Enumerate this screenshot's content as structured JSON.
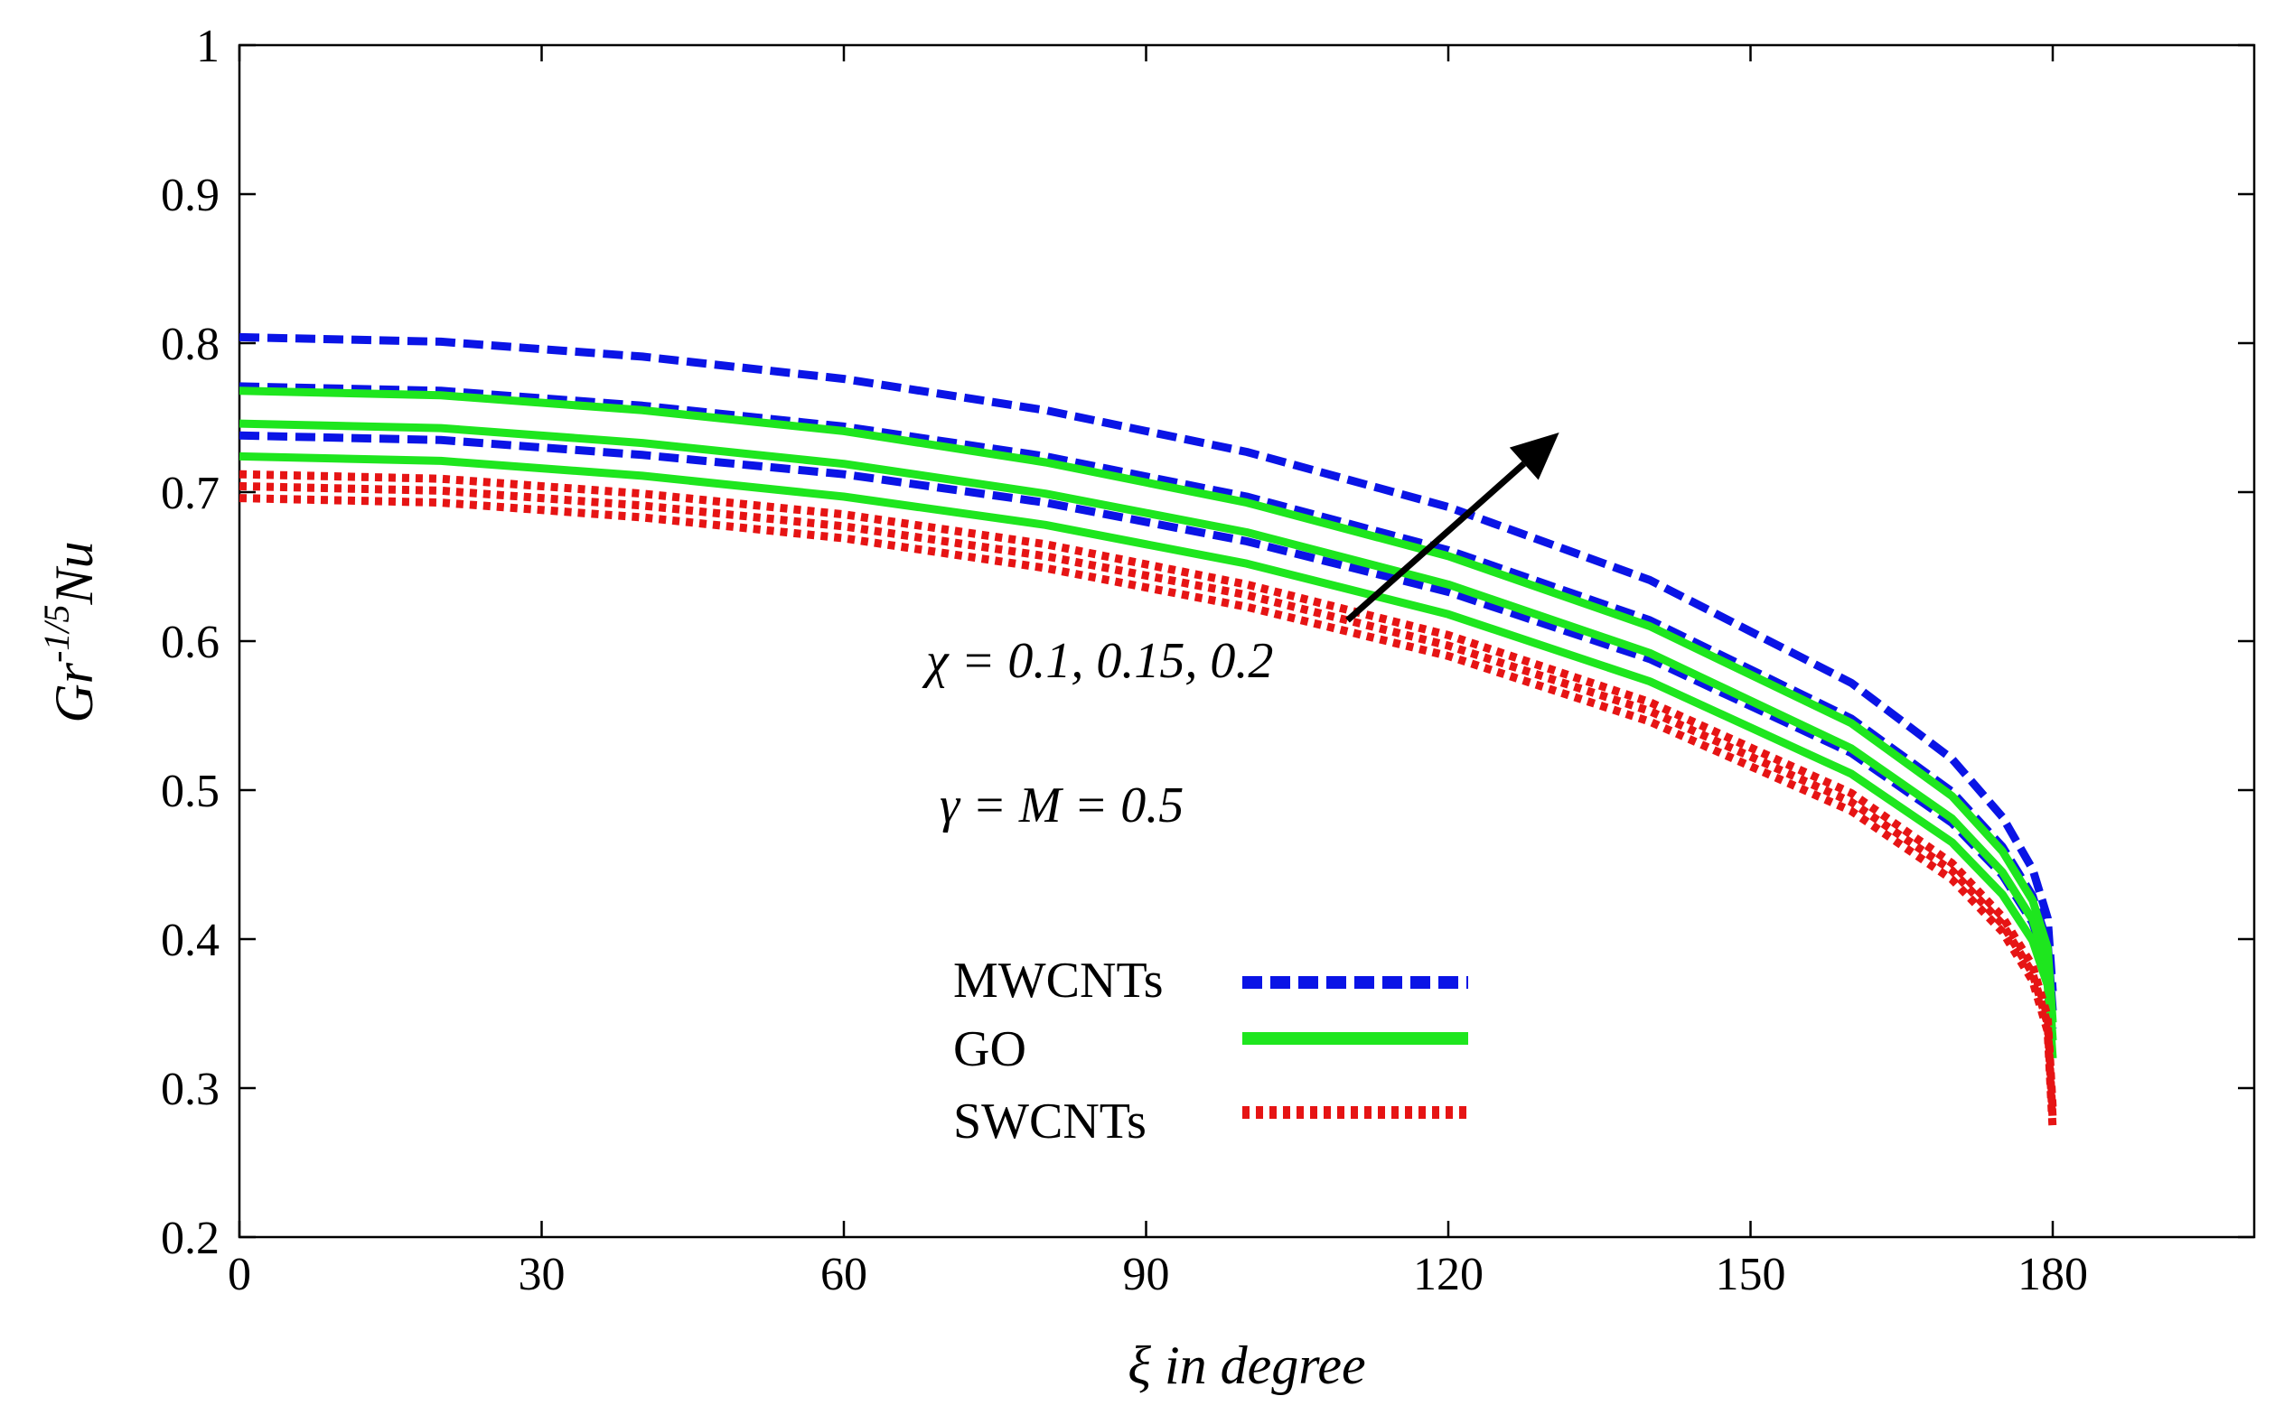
{
  "chart_data": {
    "type": "line",
    "title": "",
    "xlabel": "ξ in degree",
    "ylabel_main": "Gr",
    "ylabel_sup": "-1/5",
    "ylabel_sub": "Nu",
    "xlim": [
      0,
      200
    ],
    "ylim": [
      0.2,
      1.0
    ],
    "xticks": [
      0,
      30,
      60,
      90,
      120,
      150,
      180
    ],
    "xtick_labels": [
      "0",
      "30",
      "60",
      "90",
      "120",
      "150",
      "180"
    ],
    "yticks": [
      0.2,
      0.3,
      0.4,
      0.5,
      0.6,
      0.7,
      0.8,
      0.9,
      1.0
    ],
    "ytick_labels": [
      "0.2",
      "0.3",
      "0.4",
      "0.5",
      "0.6",
      "0.7",
      "0.8",
      "0.9",
      "1"
    ],
    "grid": false,
    "legend_position": "bottom-center",
    "x": [
      0,
      20,
      40,
      60,
      80,
      100,
      120,
      140,
      160,
      170,
      175,
      178,
      179.5,
      180
    ],
    "series": [
      {
        "name": "MWCNTs",
        "group": "MWCNTs",
        "chi": 0.1,
        "color": "#0a14e6",
        "dash": "dashed",
        "values": [
          0.738,
          0.735,
          0.725,
          0.712,
          0.693,
          0.667,
          0.633,
          0.588,
          0.525,
          0.478,
          0.443,
          0.411,
          0.381,
          0.34
        ]
      },
      {
        "name": "MWCNTs",
        "group": "MWCNTs",
        "chi": 0.15,
        "color": "#0a14e6",
        "dash": "dashed",
        "values": [
          0.771,
          0.768,
          0.758,
          0.744,
          0.724,
          0.697,
          0.661,
          0.614,
          0.548,
          0.499,
          0.462,
          0.429,
          0.397,
          0.352
        ]
      },
      {
        "name": "MWCNTs",
        "group": "MWCNTs",
        "chi": 0.2,
        "color": "#0a14e6",
        "dash": "dashed",
        "values": [
          0.804,
          0.801,
          0.791,
          0.776,
          0.755,
          0.727,
          0.69,
          0.641,
          0.572,
          0.521,
          0.482,
          0.447,
          0.414,
          0.365
        ]
      },
      {
        "name": "GO",
        "group": "GO",
        "chi": 0.1,
        "color": "#1ee61e",
        "dash": "solid",
        "values": [
          0.724,
          0.721,
          0.711,
          0.697,
          0.678,
          0.652,
          0.618,
          0.573,
          0.511,
          0.465,
          0.43,
          0.399,
          0.369,
          0.32
        ]
      },
      {
        "name": "GO",
        "group": "GO",
        "chi": 0.15,
        "color": "#1ee61e",
        "dash": "solid",
        "values": [
          0.746,
          0.743,
          0.733,
          0.719,
          0.699,
          0.673,
          0.638,
          0.592,
          0.528,
          0.481,
          0.445,
          0.413,
          0.382,
          0.332
        ]
      },
      {
        "name": "GO",
        "group": "GO",
        "chi": 0.2,
        "color": "#1ee61e",
        "dash": "solid",
        "values": [
          0.768,
          0.765,
          0.755,
          0.741,
          0.72,
          0.693,
          0.657,
          0.61,
          0.545,
          0.496,
          0.459,
          0.426,
          0.394,
          0.344
        ]
      },
      {
        "name": "SWCNTs",
        "group": "SWCNTs",
        "chi": 0.1,
        "color": "#e61414",
        "dash": "dotted",
        "values": [
          0.696,
          0.693,
          0.683,
          0.669,
          0.649,
          0.623,
          0.59,
          0.546,
          0.486,
          0.44,
          0.405,
          0.372,
          0.338,
          0.272
        ]
      },
      {
        "name": "SWCNTs",
        "group": "SWCNTs",
        "chi": 0.15,
        "color": "#e61414",
        "dash": "dotted",
        "values": [
          0.704,
          0.701,
          0.691,
          0.677,
          0.657,
          0.631,
          0.597,
          0.553,
          0.492,
          0.446,
          0.41,
          0.377,
          0.343,
          0.279
        ]
      },
      {
        "name": "SWCNTs",
        "group": "SWCNTs",
        "chi": 0.2,
        "color": "#e61414",
        "dash": "dotted",
        "values": [
          0.712,
          0.709,
          0.699,
          0.685,
          0.665,
          0.638,
          0.604,
          0.559,
          0.498,
          0.451,
          0.415,
          0.382,
          0.348,
          0.286
        ]
      }
    ],
    "legend": [
      {
        "label": "MWCNTs",
        "color": "#0a14e6",
        "dash": "dashed"
      },
      {
        "label": "GO",
        "color": "#1ee61e",
        "dash": "solid"
      },
      {
        "label": "SWCNTs",
        "color": "#e61414",
        "dash": "dotted"
      }
    ],
    "annotations": {
      "chi_text": "χ = 0.1, 0.15, 0.2",
      "params_text": "γ = M = 0.5",
      "arrow": {
        "from": [
          110,
          0.614
        ],
        "to": [
          131,
          0.74
        ],
        "color": "#000000"
      }
    }
  }
}
